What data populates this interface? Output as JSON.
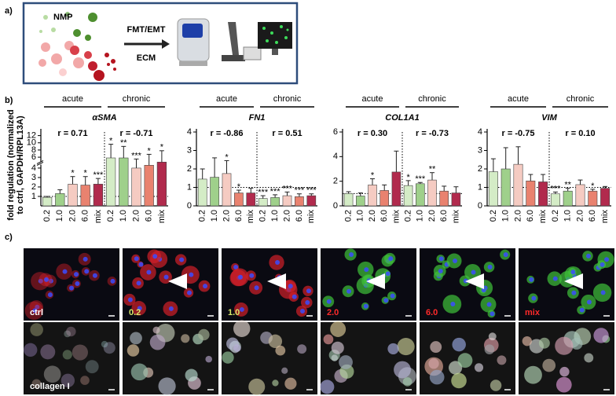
{
  "panel_labels": [
    "a)",
    "b)",
    "c)"
  ],
  "schematic": {
    "source": "NMP",
    "treatment": "FMT/EMT",
    "matrix": "ECM"
  },
  "y_axis_label": [
    "fold regulation (normalized",
    "to ctrl, GAPDH/RPL13A)"
  ],
  "chart_data": [
    {
      "type": "bar",
      "title": "αSMA",
      "groups": [
        "acute",
        "chronic"
      ],
      "categories": [
        "0.2",
        "1.0",
        "2.0",
        "6.0",
        "mix",
        "0.2",
        "1.0",
        "2.0",
        "6.0",
        "mix"
      ],
      "colors": [
        "#d4ecc6",
        "#9fd08b",
        "#f5cbc2",
        "#e9826f",
        "#b12a4d",
        "#d4ecc6",
        "#9fd08b",
        "#f5cbc2",
        "#e9826f",
        "#b12a4d"
      ],
      "values": [
        0.9,
        1.3,
        2.3,
        2.2,
        2.3,
        5.8,
        5.8,
        4.0,
        4.3,
        4.8
      ],
      "errors": [
        0.1,
        0.4,
        0.8,
        0.9,
        0.6,
        3.8,
        3.2,
        1.5,
        2.5,
        3.0
      ],
      "stars": [
        null,
        null,
        "*",
        "*",
        "***",
        "*",
        "**",
        "***",
        "*",
        "*"
      ],
      "annotations": [
        "r = 0.71",
        "r = -0.71"
      ],
      "ylim": [
        0,
        13
      ],
      "y_break": [
        4.3,
        5
      ],
      "yticks": [
        1,
        2,
        3,
        4,
        6,
        8,
        10,
        12
      ],
      "reference_line": 1
    },
    {
      "type": "bar",
      "title": "FN1",
      "groups": [
        "acute",
        "chronic"
      ],
      "categories": [
        "0.2",
        "1.0",
        "2.0",
        "6.0",
        "mix",
        "0.2",
        "1.0",
        "2.0",
        "6.0",
        "mix"
      ],
      "colors": [
        "#d4ecc6",
        "#9fd08b",
        "#f5cbc2",
        "#e9826f",
        "#b12a4d",
        "#d4ecc6",
        "#9fd08b",
        "#f5cbc2",
        "#e9826f",
        "#b12a4d"
      ],
      "values": [
        1.45,
        1.55,
        1.75,
        0.7,
        0.7,
        0.4,
        0.45,
        0.55,
        0.5,
        0.55
      ],
      "errors": [
        0.55,
        1.05,
        0.7,
        0.15,
        0.25,
        0.15,
        0.15,
        0.2,
        0.15,
        0.1
      ],
      "stars": [
        null,
        null,
        "*",
        "*",
        null,
        "***",
        "***",
        "***",
        "***",
        "***"
      ],
      "annotations": [
        "r = -0.86",
        "r = 0.51"
      ],
      "ylim": [
        0,
        4
      ],
      "yticks": [
        0,
        1,
        2,
        3,
        4
      ],
      "reference_line": 1
    },
    {
      "type": "bar",
      "title": "COL1A1",
      "groups": [
        "acute",
        "chronic"
      ],
      "categories": [
        "0.2",
        "1.0",
        "2.0",
        "6.0",
        "mix",
        "0.2",
        "1.0",
        "2.0",
        "6.0",
        "mix"
      ],
      "colors": [
        "#d4ecc6",
        "#9fd08b",
        "#f5cbc2",
        "#e9826f",
        "#b12a4d",
        "#d4ecc6",
        "#9fd08b",
        "#f5cbc2",
        "#e9826f",
        "#b12a4d"
      ],
      "values": [
        1.0,
        0.8,
        1.7,
        1.25,
        2.75,
        1.65,
        1.8,
        2.1,
        1.2,
        1.05
      ],
      "errors": [
        0.15,
        0.25,
        0.5,
        0.45,
        1.7,
        0.4,
        0.1,
        0.6,
        0.4,
        0.5
      ],
      "stars": [
        null,
        null,
        "*",
        null,
        null,
        "*",
        "***",
        "**",
        null,
        null
      ],
      "annotations": [
        "r = 0.30",
        "r = -0.73"
      ],
      "ylim": [
        0,
        6
      ],
      "yticks": [
        0,
        2,
        4,
        6
      ],
      "reference_line": 1
    },
    {
      "type": "bar",
      "title": "VIM",
      "groups": [
        "acute",
        "chronic"
      ],
      "categories": [
        "0.2",
        "1.0",
        "2.0",
        "6.0",
        "mix",
        "0.2",
        "1.0",
        "2.0",
        "6.0",
        "mix"
      ],
      "colors": [
        "#d4ecc6",
        "#9fd08b",
        "#f5cbc2",
        "#e9826f",
        "#b12a4d",
        "#d4ecc6",
        "#9fd08b",
        "#f5cbc2",
        "#e9826f",
        "#b12a4d"
      ],
      "values": [
        1.85,
        2.0,
        2.25,
        1.35,
        1.3,
        0.65,
        0.8,
        1.15,
        0.8,
        0.95
      ],
      "errors": [
        0.7,
        1.15,
        0.95,
        0.35,
        0.4,
        0.1,
        0.15,
        0.25,
        0.1,
        0.1
      ],
      "stars": [
        null,
        null,
        null,
        null,
        null,
        "***",
        "**",
        null,
        "*",
        null
      ],
      "annotations": [
        "r = -0.75",
        "r = 0.10"
      ],
      "ylim": [
        0,
        4
      ],
      "yticks": [
        0,
        1,
        2,
        3,
        4
      ],
      "reference_line": 1
    }
  ],
  "micrographs": {
    "labels": [
      "ctrl",
      "0.2",
      "1.0",
      "2.0",
      "6.0",
      "mix"
    ],
    "label_colors": [
      "#ffffff",
      "#d6e86a",
      "#d6e86a",
      "#ff2a2a",
      "#ff2a2a",
      "#ff2a2a"
    ],
    "bottom_label": "collagen I"
  }
}
